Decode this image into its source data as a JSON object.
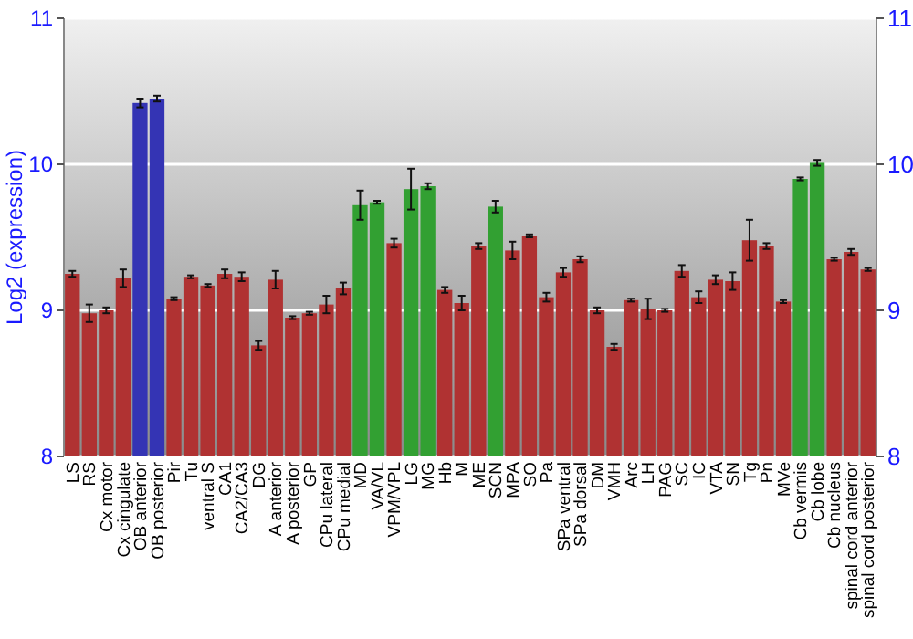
{
  "chart_data": {
    "type": "bar",
    "ylabel": "Log2 (expression)",
    "categories": [
      "LS",
      "RS",
      "Cx motor",
      "Cx cingulate",
      "OB anterior",
      "OB posterior",
      "Pir",
      "Tu",
      "ventral S",
      "CA1",
      "CA2/CA3",
      "DG",
      "A anterior",
      "A posterior",
      "GP",
      "CPu lateral",
      "CPu medial",
      "MD",
      "VA/VL",
      "VPM/VPL",
      "LG",
      "MG",
      "Hb",
      "M",
      "ME",
      "SCN",
      "MPA",
      "SO",
      "Pa",
      "SPa ventral",
      "SPa dorsal",
      "DM",
      "VMH",
      "Arc",
      "LH",
      "PAG",
      "SC",
      "IC",
      "VTA",
      "SN",
      "Tg",
      "Pn",
      "MVe",
      "Cb vermis",
      "Cb lobe",
      "Cb nucleus",
      "spinal cord anterior",
      "spinal cord posterior"
    ],
    "values": [
      9.25,
      8.98,
      9.0,
      9.22,
      10.42,
      10.45,
      9.08,
      9.23,
      9.17,
      9.25,
      9.23,
      8.76,
      9.21,
      8.95,
      8.98,
      9.04,
      9.15,
      9.72,
      9.74,
      9.46,
      9.83,
      9.85,
      9.14,
      9.05,
      9.44,
      9.71,
      9.41,
      9.51,
      9.09,
      9.26,
      9.35,
      9.0,
      8.75,
      9.07,
      9.01,
      9.0,
      9.27,
      9.09,
      9.21,
      9.2,
      9.48,
      9.44,
      9.06,
      9.9,
      10.01,
      9.35,
      9.4,
      9.28
    ],
    "errors": [
      0.02,
      0.06,
      0.02,
      0.06,
      0.03,
      0.02,
      0.01,
      0.01,
      0.01,
      0.03,
      0.03,
      0.03,
      0.06,
      0.01,
      0.01,
      0.06,
      0.04,
      0.1,
      0.01,
      0.03,
      0.14,
      0.02,
      0.02,
      0.05,
      0.02,
      0.04,
      0.06,
      0.01,
      0.03,
      0.03,
      0.02,
      0.02,
      0.02,
      0.01,
      0.07,
      0.01,
      0.04,
      0.04,
      0.03,
      0.06,
      0.14,
      0.02,
      0.01,
      0.01,
      0.02,
      0.01,
      0.02,
      0.01
    ],
    "colors": [
      "#b03232",
      "#b03232",
      "#b03232",
      "#b03232",
      "#3434b4",
      "#3434b4",
      "#b03232",
      "#b03232",
      "#b03232",
      "#b03232",
      "#b03232",
      "#b03232",
      "#b03232",
      "#b03232",
      "#b03232",
      "#b03232",
      "#b03232",
      "#32a032",
      "#32a032",
      "#b03232",
      "#32a032",
      "#32a032",
      "#b03232",
      "#b03232",
      "#b03232",
      "#32a032",
      "#b03232",
      "#b03232",
      "#b03232",
      "#b03232",
      "#b03232",
      "#b03232",
      "#b03232",
      "#b03232",
      "#b03232",
      "#b03232",
      "#b03232",
      "#b03232",
      "#b03232",
      "#b03232",
      "#b03232",
      "#b03232",
      "#b03232",
      "#32a032",
      "#32a032",
      "#b03232",
      "#b03232",
      "#b03232"
    ],
    "ylim": [
      8,
      11
    ],
    "yticks": [
      8,
      9,
      10,
      11
    ],
    "y2lim": [
      8,
      11
    ],
    "y2ticks": [
      8,
      9,
      10,
      11
    ],
    "grid": "y"
  }
}
